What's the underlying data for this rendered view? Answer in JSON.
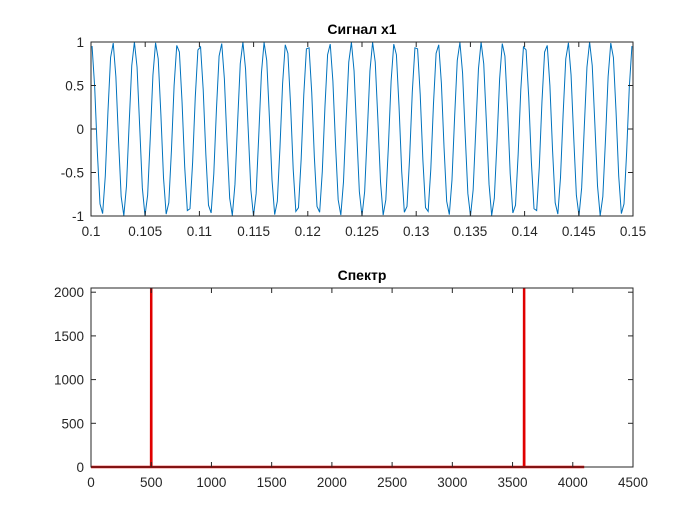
{
  "chart_data": [
    {
      "type": "line",
      "title": "Сигнал x1",
      "xlabel": "",
      "ylabel": "",
      "xlim": [
        0.1,
        0.15
      ],
      "ylim": [
        -1,
        1
      ],
      "x_ticks": [
        0.1,
        0.105,
        0.11,
        0.115,
        0.12,
        0.125,
        0.13,
        0.135,
        0.14,
        0.145,
        0.15
      ],
      "x_tick_labels": [
        "0.1",
        "0.105",
        "0.11",
        "0.115",
        "0.12",
        "0.125",
        "0.13",
        "0.135",
        "0.14",
        "0.145",
        "0.15"
      ],
      "y_ticks": [
        -1,
        -0.5,
        0,
        0.5,
        1
      ],
      "y_tick_labels": [
        "-1",
        "-0.5",
        "0",
        "0.5",
        "1"
      ],
      "grid": false,
      "series": [
        {
          "color": "#0072bd",
          "function": "cos(2*pi*500*t)",
          "frequency_hz": 500,
          "amplitude": 1,
          "sample_rate_hz": 4096
        }
      ]
    },
    {
      "type": "line",
      "title": "Спектр",
      "xlabel": "",
      "ylabel": "",
      "xlim": [
        0,
        4500
      ],
      "ylim": [
        0,
        2048
      ],
      "x_ticks": [
        0,
        500,
        1000,
        1500,
        2000,
        2500,
        3000,
        3500,
        4000,
        4500
      ],
      "x_tick_labels": [
        "0",
        "500",
        "1000",
        "1500",
        "2000",
        "2500",
        "3000",
        "3500",
        "4000",
        "4500"
      ],
      "y_ticks": [
        0,
        500,
        1000,
        1500,
        2000
      ],
      "y_tick_labels": [
        "0",
        "500",
        "1000",
        "1500",
        "2000"
      ],
      "grid": false,
      "series": [
        {
          "color": "#e00000",
          "x_range": [
            0,
            4095
          ],
          "baseline": 0,
          "peaks": [
            {
              "x": 500,
              "y": 2048
            },
            {
              "x": 3596,
              "y": 2048
            }
          ]
        }
      ]
    }
  ]
}
